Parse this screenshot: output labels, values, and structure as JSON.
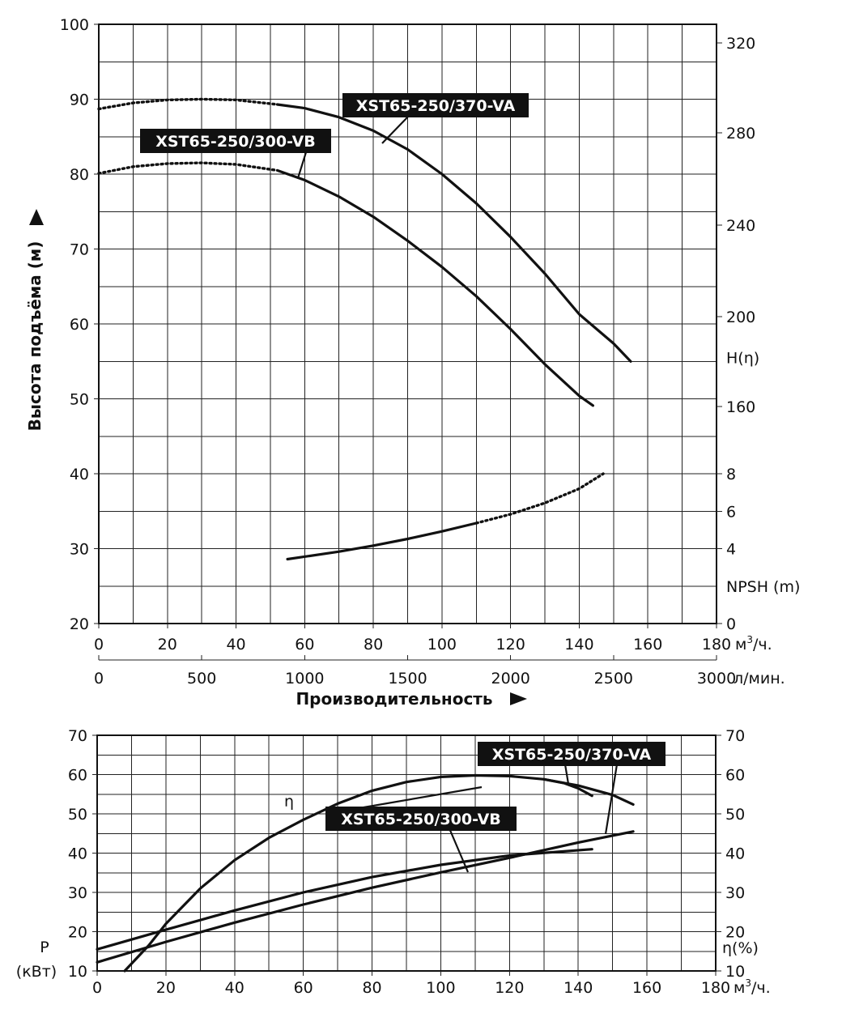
{
  "chart_data": [
    {
      "type": "line",
      "title": "",
      "xlabel": "Производительность",
      "x_unit": "м³/ч.",
      "x_unit_sup": "3",
      "x_unit_pre": "м",
      "x_unit_post": "/ч.",
      "x2_unit": "л/мин.",
      "ylabel": "Высота подъёма (м)",
      "xlim": [
        0,
        180
      ],
      "ylim": [
        20,
        100
      ],
      "x_ticks": [
        0,
        20,
        40,
        60,
        80,
        100,
        120,
        140,
        160,
        180
      ],
      "x2_ticks": [
        "0",
        "500",
        "1000",
        "1500",
        "2000",
        "2500",
        "3000"
      ],
      "y_ticks": [
        20,
        30,
        40,
        50,
        60,
        70,
        80,
        90,
        100
      ],
      "right_ticks_head": [
        "320",
        "280",
        "240",
        "200",
        "160"
      ],
      "right_ticks_head_at_y": [
        97.5,
        85.5,
        73.2,
        61.0,
        49.0
      ],
      "right_label_head": "H(η)",
      "right_label_head_at_y": 55.5,
      "right_ticks_npsh": [
        "8",
        "6",
        "4",
        "0"
      ],
      "right_ticks_npsh_at_y": [
        40,
        35,
        30,
        20
      ],
      "right_label_npsh": "NPSH (m)",
      "right_label_npsh_at_y": 25,
      "grid": true,
      "series": [
        {
          "name": "XST65-250/370-VA",
          "dotted_until_x": 52,
          "x": [
            0,
            10,
            20,
            30,
            40,
            52,
            60,
            70,
            80,
            90,
            100,
            110,
            120,
            130,
            140,
            150,
            155
          ],
          "values": [
            88.7,
            89.5,
            89.9,
            90.0,
            89.9,
            89.3,
            88.8,
            87.6,
            85.8,
            83.3,
            80.0,
            76.1,
            71.6,
            66.7,
            61.3,
            57.4,
            55.0
          ]
        },
        {
          "name": "XST65-250/300-VB",
          "dotted_until_x": 52,
          "x": [
            0,
            10,
            20,
            30,
            40,
            52,
            60,
            70,
            80,
            90,
            100,
            110,
            120,
            130,
            140,
            144
          ],
          "values": [
            80.1,
            81.0,
            81.4,
            81.5,
            81.3,
            80.5,
            79.2,
            77.0,
            74.3,
            71.1,
            67.6,
            63.7,
            59.3,
            54.6,
            50.4,
            49.1
          ]
        },
        {
          "name": "NPSH",
          "dotted_from_x": 110,
          "x": [
            55,
            70,
            80,
            90,
            100,
            110,
            120,
            130,
            140,
            147
          ],
          "values": [
            28.6,
            29.6,
            30.4,
            31.3,
            32.3,
            33.4,
            34.6,
            36.1,
            38.0,
            40.0
          ]
        }
      ],
      "labels": [
        {
          "text": "XST65-250/370-VA"
        },
        {
          "text": "XST65-250/300-VB"
        }
      ]
    },
    {
      "type": "line",
      "title": "",
      "x_unit": "м³/ч.",
      "x_unit_sup": "3",
      "x_unit_pre": "м",
      "x_unit_post": "/ч.",
      "ylabel_line1": "P",
      "ylabel_line2": "(кВт)",
      "right_label_line1": "η",
      "right_label_line2": "(%)",
      "eta_label": "η",
      "xlim": [
        0,
        180
      ],
      "ylim": [
        10,
        70
      ],
      "x_ticks": [
        0,
        20,
        40,
        60,
        80,
        100,
        120,
        140,
        160,
        180
      ],
      "y_ticks": [
        10,
        20,
        30,
        40,
        50,
        60,
        70
      ],
      "right_ticks": [
        10,
        20,
        30,
        40,
        50,
        60,
        70
      ],
      "grid": true,
      "series": [
        {
          "name": "η (XST65-250/370-VA)",
          "x": [
            8,
            15,
            20,
            30,
            40,
            50,
            60,
            70,
            80,
            90,
            100,
            110,
            120,
            130,
            140,
            150,
            156
          ],
          "values": [
            10.0,
            16.5,
            22.0,
            31.0,
            38.2,
            43.9,
            48.5,
            52.6,
            55.9,
            58.1,
            59.4,
            59.8,
            59.6,
            58.8,
            57.2,
            54.8,
            52.4
          ]
        },
        {
          "name": "η (XST65-250/300-VB)",
          "x": [
            130,
            136,
            140,
            144
          ],
          "values": [
            58.8,
            57.8,
            56.5,
            54.6
          ]
        },
        {
          "name": "P XST65-250/370-VA",
          "x": [
            0,
            20,
            40,
            60,
            80,
            100,
            120,
            140,
            156
          ],
          "values": [
            12.2,
            17.4,
            22.3,
            26.9,
            31.2,
            35.1,
            38.8,
            42.7,
            45.5
          ]
        },
        {
          "name": "P XST65-250/300-VB",
          "x": [
            0,
            20,
            40,
            60,
            80,
            100,
            120,
            144
          ],
          "values": [
            15.5,
            20.5,
            25.4,
            30.0,
            33.9,
            37.0,
            39.4,
            41.0
          ]
        }
      ],
      "labels": [
        {
          "text": "XST65-250/370-VA"
        },
        {
          "text": "XST65-250/300-VB"
        }
      ]
    }
  ]
}
